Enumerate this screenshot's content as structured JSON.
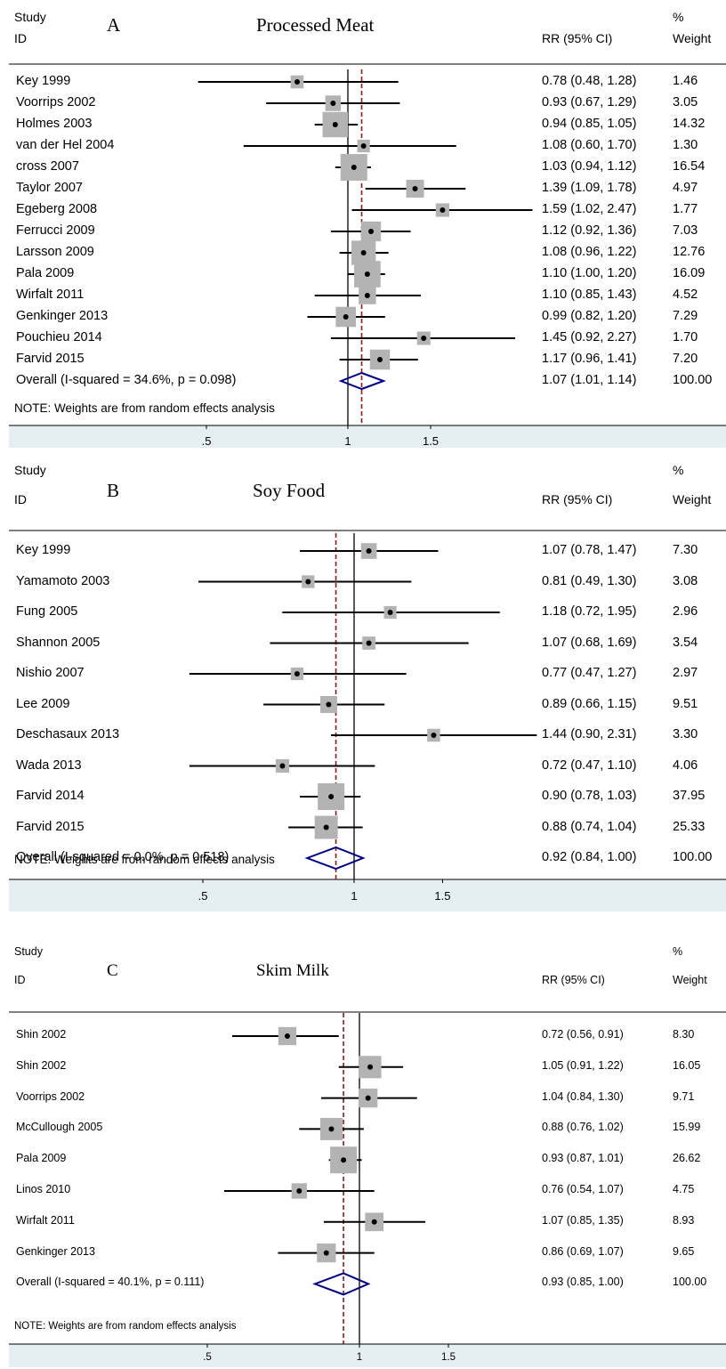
{
  "colors": {
    "line": "#000000",
    "box": "#b3b3b3",
    "diamond": "#000080",
    "overall_line": "#8b1a1a",
    "axis_band": "#e5eef3"
  },
  "chart_data": [
    {
      "type": "forest",
      "letter": "A",
      "title": "Processed Meat",
      "header": {
        "study": "Study",
        "id": "ID",
        "effect": "RR (95% CI)",
        "pct": "%",
        "weight": "Weight"
      },
      "ticks": [
        ".5",
        "1",
        "1.5"
      ],
      "tick_values": [
        0.5,
        1,
        1.5
      ],
      "xlim": [
        0.33,
        2.6
      ],
      "null_line": 1,
      "studies": [
        {
          "label": "Key 1999",
          "rr": 0.78,
          "lo": 0.48,
          "hi": 1.28,
          "ci_text": "0.78 (0.48, 1.28)",
          "weight": "1.46"
        },
        {
          "label": "Voorrips 2002",
          "rr": 0.93,
          "lo": 0.67,
          "hi": 1.29,
          "ci_text": "0.93 (0.67, 1.29)",
          "weight": "3.05"
        },
        {
          "label": "Holmes 2003",
          "rr": 0.94,
          "lo": 0.85,
          "hi": 1.05,
          "ci_text": "0.94 (0.85, 1.05)",
          "weight": "14.32"
        },
        {
          "label": "van der Hel 2004",
          "rr": 1.08,
          "lo": 0.6,
          "hi": 1.7,
          "ci_text": "1.08 (0.60, 1.70)",
          "weight": "1.30"
        },
        {
          "label": "cross 2007",
          "rr": 1.03,
          "lo": 0.94,
          "hi": 1.12,
          "ci_text": "1.03 (0.94, 1.12)",
          "weight": "16.54"
        },
        {
          "label": "Taylor 2007",
          "rr": 1.39,
          "lo": 1.09,
          "hi": 1.78,
          "ci_text": "1.39 (1.09, 1.78)",
          "weight": "4.97"
        },
        {
          "label": "Egeberg 2008",
          "rr": 1.59,
          "lo": 1.02,
          "hi": 2.47,
          "ci_text": "1.59 (1.02, 2.47)",
          "weight": "1.77"
        },
        {
          "label": "Ferrucci 2009",
          "rr": 1.12,
          "lo": 0.92,
          "hi": 1.36,
          "ci_text": "1.12 (0.92, 1.36)",
          "weight": "7.03"
        },
        {
          "label": "Larsson 2009",
          "rr": 1.08,
          "lo": 0.96,
          "hi": 1.22,
          "ci_text": "1.08 (0.96, 1.22)",
          "weight": "12.76"
        },
        {
          "label": "Pala 2009",
          "rr": 1.1,
          "lo": 1.0,
          "hi": 1.2,
          "ci_text": "1.10 (1.00, 1.20)",
          "weight": "16.09"
        },
        {
          "label": "Wirfalt 2011",
          "rr": 1.1,
          "lo": 0.85,
          "hi": 1.43,
          "ci_text": "1.10 (0.85, 1.43)",
          "weight": "4.52"
        },
        {
          "label": "Genkinger 2013",
          "rr": 0.99,
          "lo": 0.82,
          "hi": 1.2,
          "ci_text": "0.99 (0.82, 1.20)",
          "weight": "7.29"
        },
        {
          "label": "Pouchieu 2014",
          "rr": 1.45,
          "lo": 0.92,
          "hi": 2.27,
          "ci_text": "1.45 (0.92, 2.27)",
          "weight": "1.70"
        },
        {
          "label": "Farvid 2015",
          "rr": 1.17,
          "lo": 0.96,
          "hi": 1.41,
          "ci_text": "1.17 (0.96, 1.41)",
          "weight": "7.20"
        }
      ],
      "overall": {
        "label": "Overall  (I-squared = 34.6%, p = 0.098)",
        "rr": 1.07,
        "lo": 1.01,
        "hi": 1.14,
        "ci_text": "1.07 (1.01, 1.14)",
        "weight": "100.00"
      },
      "note": "NOTE: Weights are from random effects analysis"
    },
    {
      "type": "forest",
      "letter": "B",
      "title": "Soy  Food",
      "header": {
        "study": "Study",
        "id": "ID",
        "effect": "RR (95% CI)",
        "pct": "%",
        "weight": "Weight"
      },
      "ticks": [
        ".5",
        "1",
        "1.5"
      ],
      "tick_values": [
        0.5,
        1,
        1.5
      ],
      "xlim": [
        0.33,
        2.6
      ],
      "null_line": 1,
      "studies": [
        {
          "label": "Key 1999",
          "rr": 1.07,
          "lo": 0.78,
          "hi": 1.47,
          "ci_text": "1.07 (0.78, 1.47)",
          "weight": "7.30"
        },
        {
          "label": "Yamamoto 2003",
          "rr": 0.81,
          "lo": 0.49,
          "hi": 1.3,
          "ci_text": "0.81 (0.49, 1.30)",
          "weight": "3.08"
        },
        {
          "label": "Fung 2005",
          "rr": 1.18,
          "lo": 0.72,
          "hi": 1.95,
          "ci_text": "1.18 (0.72, 1.95)",
          "weight": "2.96"
        },
        {
          "label": "Shannon 2005",
          "rr": 1.07,
          "lo": 0.68,
          "hi": 1.69,
          "ci_text": "1.07 (0.68, 1.69)",
          "weight": "3.54"
        },
        {
          "label": "Nishio 2007",
          "rr": 0.77,
          "lo": 0.47,
          "hi": 1.27,
          "ci_text": "0.77 (0.47, 1.27)",
          "weight": "2.97"
        },
        {
          "label": "Lee 2009",
          "rr": 0.89,
          "lo": 0.66,
          "hi": 1.15,
          "ci_text": "0.89 (0.66, 1.15)",
          "weight": "9.51"
        },
        {
          "label": "Deschasaux 2013",
          "rr": 1.44,
          "lo": 0.9,
          "hi": 2.31,
          "ci_text": "1.44 (0.90, 2.31)",
          "weight": "3.30"
        },
        {
          "label": "Wada 2013",
          "rr": 0.72,
          "lo": 0.47,
          "hi": 1.1,
          "ci_text": "0.72 (0.47, 1.10)",
          "weight": "4.06"
        },
        {
          "label": "Farvid 2014",
          "rr": 0.9,
          "lo": 0.78,
          "hi": 1.03,
          "ci_text": "0.90 (0.78, 1.03)",
          "weight": "37.95"
        },
        {
          "label": "Farvid 2015",
          "rr": 0.88,
          "lo": 0.74,
          "hi": 1.04,
          "ci_text": "0.88 (0.74, 1.04)",
          "weight": "25.33"
        }
      ],
      "overall": {
        "label": "Overall  (I-squared = 0.0%, p = 0.518)",
        "rr": 0.92,
        "lo": 0.84,
        "hi": 1.0,
        "ci_text": "0.92 (0.84, 1.00)",
        "weight": "100.00"
      },
      "note": "NOTE: Weights are from random effects analysis"
    },
    {
      "type": "forest",
      "letter": "C",
      "title": "Skim Milk",
      "header": {
        "study": "Study",
        "id": "ID",
        "effect": "RR (95% CI)",
        "pct": "%",
        "weight": "Weight"
      },
      "ticks": [
        ".5",
        "1",
        "1.5"
      ],
      "tick_values": [
        0.5,
        1,
        1.5
      ],
      "xlim": [
        0.33,
        2.6
      ],
      "null_line": 1,
      "studies": [
        {
          "label": "Shin 2002",
          "rr": 0.72,
          "lo": 0.56,
          "hi": 0.91,
          "ci_text": "0.72 (0.56, 0.91)",
          "weight": "8.30"
        },
        {
          "label": "Shin 2002",
          "rr": 1.05,
          "lo": 0.91,
          "hi": 1.22,
          "ci_text": "1.05 (0.91, 1.22)",
          "weight": "16.05"
        },
        {
          "label": "Voorrips 2002",
          "rr": 1.04,
          "lo": 0.84,
          "hi": 1.3,
          "ci_text": "1.04 (0.84, 1.30)",
          "weight": "9.71"
        },
        {
          "label": "McCullough 2005",
          "rr": 0.88,
          "lo": 0.76,
          "hi": 1.02,
          "ci_text": "0.88 (0.76, 1.02)",
          "weight": "15.99"
        },
        {
          "label": "Pala 2009",
          "rr": 0.93,
          "lo": 0.87,
          "hi": 1.01,
          "ci_text": "0.93 (0.87, 1.01)",
          "weight": "26.62"
        },
        {
          "label": "Linos 2010",
          "rr": 0.76,
          "lo": 0.54,
          "hi": 1.07,
          "ci_text": "0.76 (0.54, 1.07)",
          "weight": "4.75"
        },
        {
          "label": "Wirfalt 2011",
          "rr": 1.07,
          "lo": 0.85,
          "hi": 1.35,
          "ci_text": "1.07 (0.85, 1.35)",
          "weight": "8.93"
        },
        {
          "label": "Genkinger 2013",
          "rr": 0.86,
          "lo": 0.69,
          "hi": 1.07,
          "ci_text": "0.86 (0.69, 1.07)",
          "weight": "9.65"
        }
      ],
      "overall": {
        "label": "Overall  (I-squared = 40.1%, p = 0.111)",
        "rr": 0.93,
        "lo": 0.85,
        "hi": 1.0,
        "ci_text": "0.93 (0.85, 1.00)",
        "weight": "100.00"
      },
      "note": "NOTE: Weights are from random effects analysis"
    }
  ]
}
